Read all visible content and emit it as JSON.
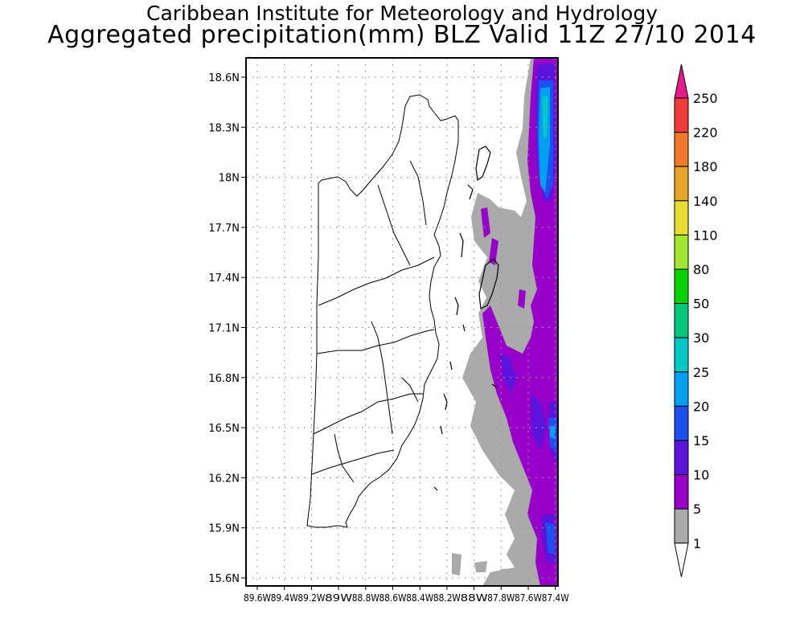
{
  "header": {
    "institute": "Caribbean Institute for Meteorology and Hydrology",
    "title": "Aggregated precipitation(mm) BLZ Valid 11Z 27/10 2014"
  },
  "map": {
    "lat_labels": [
      "18.6N",
      "18.3N",
      "18N",
      "17.7N",
      "17.4N",
      "17.1N",
      "16.8N",
      "16.5N",
      "16.2N",
      "15.9N",
      "15.6N"
    ],
    "lon_labels": [
      "89.6W",
      "89.4W",
      "89.2W",
      "89W",
      "88.8W",
      "88.6W",
      "88.4W",
      "88.2W",
      "88W",
      "87.8W",
      "87.6W",
      "87.4W"
    ]
  },
  "legend": {
    "labels": [
      "250",
      "220",
      "180",
      "140",
      "110",
      "80",
      "50",
      "30",
      "25",
      "20",
      "15",
      "10",
      "5",
      "1"
    ],
    "colors": {
      "above": "#e8198c",
      "250": "#f03c3c",
      "220": "#f07828",
      "180": "#e6a528",
      "140": "#e6dc32",
      "110": "#a0e632",
      "80": "#00d200",
      "50": "#00c878",
      "30": "#00c8c8",
      "25": "#00a0f0",
      "20": "#1e50f0",
      "15": "#5a14dc",
      "10": "#9600c8",
      "5": "#aaaaaa",
      "1": "#ffffff"
    }
  }
}
